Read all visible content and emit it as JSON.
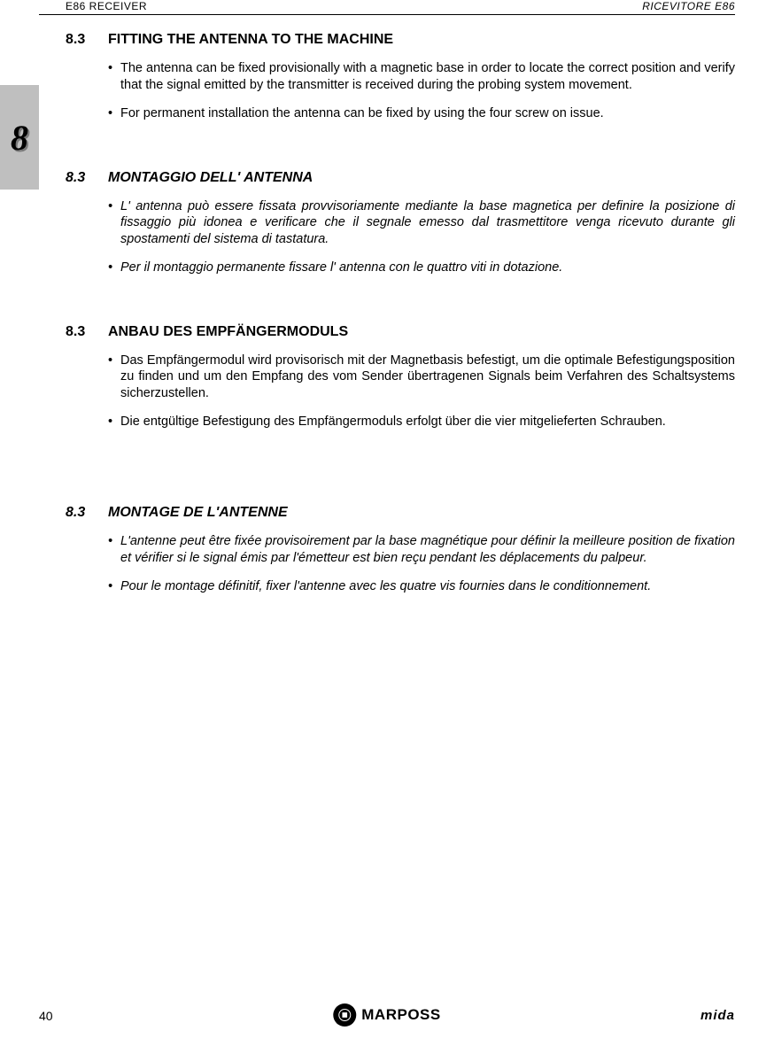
{
  "header": {
    "left": "E86  RECEIVER",
    "right": "RICEVITORE  E86"
  },
  "side_tab": {
    "digit": "8"
  },
  "sections": [
    {
      "num": "8.3",
      "title": "FITTING THE ANTENNA TO THE MACHINE",
      "italic": false,
      "bullets": [
        "The antenna can be fixed provisionally with a magnetic base in order to locate the correct position and verify that the signal emitted by the transmitter is received during the probing system movement.",
        "For permanent installation the antenna can be fixed by using the four screw on issue."
      ]
    },
    {
      "num": "8.3",
      "title": "MONTAGGIO DELL' ANTENNA",
      "italic": true,
      "bullets": [
        "L' antenna può essere fissata provvisoriamente mediante la base magnetica per definire la posizione di fissaggio più idonea e verificare che il segnale emesso dal trasmettitore venga ricevuto durante gli spostamenti del sistema di tastatura.",
        "Per il montaggio permanente fissare l' antenna con le quattro viti in dotazione."
      ]
    },
    {
      "num": "8.3",
      "title": "ANBAU DES EMPFÄNGERMODULS",
      "italic": false,
      "bullets": [
        "Das Empfängermodul wird provisorisch mit der Magnetbasis befestigt, um die optimale Befestigungsposition zu finden und um den Empfang des vom Sender übertragenen Signals beim Verfahren des Schaltsystems sicherzustellen.",
        "Die entgültige Befestigung des Empfängermoduls erfolgt über die vier mitgelieferten Schrauben."
      ]
    },
    {
      "num": "8.3",
      "title": "MONTAGE DE L'ANTENNE",
      "italic": true,
      "bullets": [
        "L'antenne peut être fixée provisoirement par la base magnétique pour définir la meilleure  position de fixation et vérifier si le signal émis par l'émetteur est bien reçu pendant les déplacements du palpeur.",
        "Pour le montage définitif, fixer l'antenne avec les quatre vis fournies dans le conditionnement."
      ]
    }
  ],
  "footer": {
    "page": "40",
    "logo_text": "MARPOSS",
    "brand_right": "mida"
  }
}
